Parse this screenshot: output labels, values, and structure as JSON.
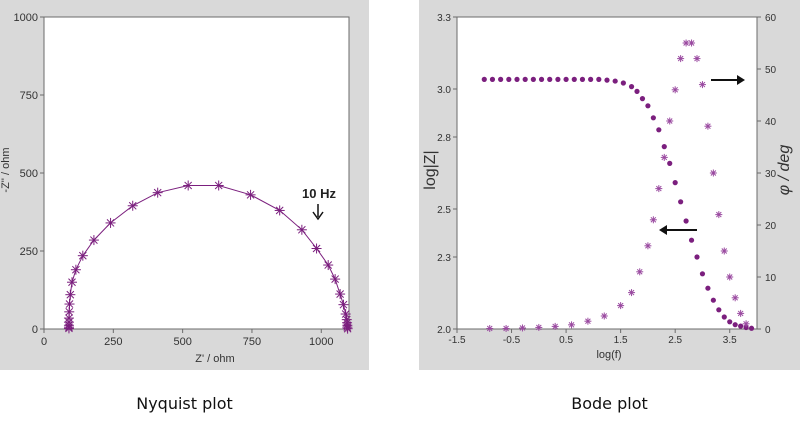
{
  "captions": {
    "left": "Nyquist plot",
    "right": "Bode plot"
  },
  "colors": {
    "series": "#7b1f7e",
    "panel": "#d9d9d9",
    "plot_bg": "#ffffff",
    "axis": "#6b6b6b"
  },
  "chart_data": [
    {
      "type": "scatter",
      "xlabel": "Z' / ohm",
      "ylabel": "-Z'' / ohm",
      "xlim": [
        0,
        1100
      ],
      "ylim": [
        0,
        1000
      ],
      "xticks": [
        "0",
        "250",
        "500",
        "750",
        "1000"
      ],
      "yticks": [
        "0",
        "250",
        "500",
        "750",
        "1000"
      ],
      "annotation": "10 Hz",
      "series": [
        {
          "marker": "asterisk",
          "line": true,
          "points": [
            [
              1095,
              1
            ],
            [
              1094,
              6
            ],
            [
              1094,
              12
            ],
            [
              1093,
              20
            ],
            [
              1092,
              30
            ],
            [
              1088,
              48
            ],
            [
              1080,
              78
            ],
            [
              1068,
              112
            ],
            [
              1050,
              160
            ],
            [
              1025,
              205
            ],
            [
              983,
              258
            ],
            [
              930,
              318
            ],
            [
              850,
              380
            ],
            [
              745,
              430
            ],
            [
              630,
              460
            ],
            [
              520,
              460
            ],
            [
              410,
              437
            ],
            [
              320,
              395
            ],
            [
              240,
              340
            ],
            [
              180,
              285
            ],
            [
              140,
              235
            ],
            [
              115,
              190
            ],
            [
              101,
              150
            ],
            [
              95,
              110
            ],
            [
              92,
              80
            ],
            [
              91,
              55
            ],
            [
              90,
              35
            ],
            [
              90,
              22
            ],
            [
              90,
              12
            ],
            [
              90,
              6
            ],
            [
              90,
              2
            ]
          ]
        }
      ]
    },
    {
      "type": "scatter",
      "xlabel": "log(f)",
      "ylabel_left": "log|Z|",
      "ylabel_right": "φ / deg",
      "xlim": [
        -1.5,
        4.0
      ],
      "ylim_left": [
        2.0,
        3.3
      ],
      "ylim_right": [
        0,
        60
      ],
      "xticks": [
        "-1.5",
        "-0.5",
        "0.5",
        "1.5",
        "2.5",
        "3.5"
      ],
      "yticks_left": [
        "2.0",
        "2.3",
        "2.5",
        "2.8",
        "3.0",
        "3.3"
      ],
      "yticks_right": [
        "0",
        "10",
        "20",
        "30",
        "40",
        "50",
        "60"
      ],
      "series": [
        {
          "axis": "left",
          "marker": "dot",
          "points": [
            [
              -1.0,
              3.04
            ],
            [
              -0.85,
              3.04
            ],
            [
              -0.7,
              3.04
            ],
            [
              -0.55,
              3.04
            ],
            [
              -0.4,
              3.04
            ],
            [
              -0.25,
              3.04
            ],
            [
              -0.1,
              3.04
            ],
            [
              0.05,
              3.04
            ],
            [
              0.2,
              3.04
            ],
            [
              0.35,
              3.04
            ],
            [
              0.5,
              3.04
            ],
            [
              0.65,
              3.04
            ],
            [
              0.8,
              3.04
            ],
            [
              0.95,
              3.04
            ],
            [
              1.1,
              3.04
            ],
            [
              1.25,
              3.037
            ],
            [
              1.4,
              3.033
            ],
            [
              1.55,
              3.025
            ],
            [
              1.7,
              3.01
            ],
            [
              1.8,
              2.99
            ],
            [
              1.9,
              2.96
            ],
            [
              2.0,
              2.93
            ],
            [
              2.1,
              2.88
            ],
            [
              2.2,
              2.83
            ],
            [
              2.3,
              2.76
            ],
            [
              2.4,
              2.69
            ],
            [
              2.5,
              2.61
            ],
            [
              2.6,
              2.53
            ],
            [
              2.7,
              2.45
            ],
            [
              2.8,
              2.37
            ],
            [
              2.9,
              2.3
            ],
            [
              3.0,
              2.23
            ],
            [
              3.1,
              2.17
            ],
            [
              3.2,
              2.12
            ],
            [
              3.3,
              2.08
            ],
            [
              3.4,
              2.05
            ],
            [
              3.5,
              2.03
            ],
            [
              3.6,
              2.018
            ],
            [
              3.7,
              2.012
            ],
            [
              3.8,
              2.006
            ],
            [
              3.9,
              2.003
            ]
          ]
        },
        {
          "axis": "right",
          "marker": "asterisk",
          "points": [
            [
              -0.9,
              0.1
            ],
            [
              -0.6,
              0.1
            ],
            [
              -0.3,
              0.2
            ],
            [
              0.0,
              0.3
            ],
            [
              0.3,
              0.5
            ],
            [
              0.6,
              0.8
            ],
            [
              0.9,
              1.5
            ],
            [
              1.2,
              2.5
            ],
            [
              1.5,
              4.5
            ],
            [
              1.7,
              7
            ],
            [
              1.85,
              11
            ],
            [
              2.0,
              16
            ],
            [
              2.1,
              21
            ],
            [
              2.2,
              27
            ],
            [
              2.3,
              33
            ],
            [
              2.4,
              40
            ],
            [
              2.5,
              46
            ],
            [
              2.6,
              52
            ],
            [
              2.7,
              55
            ],
            [
              2.8,
              55
            ],
            [
              2.9,
              52
            ],
            [
              3.0,
              47
            ],
            [
              3.1,
              39
            ],
            [
              3.2,
              30
            ],
            [
              3.3,
              22
            ],
            [
              3.4,
              15
            ],
            [
              3.5,
              10
            ],
            [
              3.6,
              6
            ],
            [
              3.7,
              3
            ],
            [
              3.8,
              1
            ]
          ]
        }
      ]
    }
  ]
}
